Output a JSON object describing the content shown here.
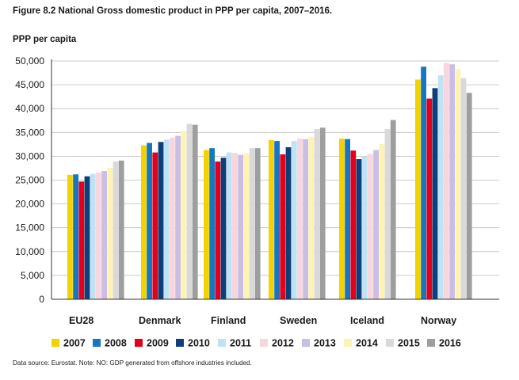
{
  "title": "Figure 8.2 National Gross domestic product in PPP per capita, 2007–2016.",
  "footnote": "Data source: Eurostat. Note: NO: GDP generated from offshore industries included.",
  "chart_data": {
    "type": "bar",
    "title": "Figure 8.2 National Gross domestic product in PPP per capita, 2007–2016.",
    "xlabel": "",
    "ylabel": "PPP per capita",
    "ylim": [
      0,
      50000
    ],
    "yticks": [
      0,
      5000,
      10000,
      15000,
      20000,
      25000,
      30000,
      35000,
      40000,
      45000,
      50000
    ],
    "ytick_labels": [
      "0",
      "5,000",
      "10,000",
      "15,000",
      "20,000",
      "25,000",
      "30,000",
      "35,000",
      "40,000",
      "45,000",
      "50,000"
    ],
    "grid": true,
    "legend_position": "bottom",
    "categories": [
      "EU28",
      "Denmark",
      "Finland",
      "Sweden",
      "Iceland",
      "Norway"
    ],
    "series": [
      {
        "name": "2007",
        "color": "#f2d200",
        "values": [
          26100,
          32300,
          31300,
          33400,
          33700,
          46100
        ]
      },
      {
        "name": "2008",
        "color": "#1576c4",
        "values": [
          26200,
          32800,
          31700,
          33200,
          33600,
          48800
        ]
      },
      {
        "name": "2009",
        "color": "#e2001a",
        "values": [
          24700,
          30800,
          28900,
          30400,
          31200,
          42100
        ]
      },
      {
        "name": "2010",
        "color": "#0d3f7a",
        "values": [
          25800,
          33000,
          29700,
          31900,
          29400,
          44300
        ]
      },
      {
        "name": "2011",
        "color": "#bfe3f5",
        "values": [
          26300,
          33500,
          30800,
          33200,
          29900,
          47000
        ]
      },
      {
        "name": "2012",
        "color": "#f8d6de",
        "values": [
          26600,
          33900,
          30700,
          33700,
          30500,
          49600
        ]
      },
      {
        "name": "2013",
        "color": "#c9bfe6",
        "values": [
          26900,
          34300,
          30300,
          33600,
          31300,
          49300
        ]
      },
      {
        "name": "2014",
        "color": "#fdf3b5",
        "values": [
          27600,
          35300,
          30600,
          34100,
          32600,
          48300
        ]
      },
      {
        "name": "2015",
        "color": "#d9d9d9",
        "values": [
          28900,
          36800,
          31700,
          35700,
          35700,
          46400
        ]
      },
      {
        "name": "2016",
        "color": "#9e9e9e",
        "values": [
          29100,
          36600,
          31700,
          36000,
          37600,
          43300
        ]
      }
    ]
  }
}
